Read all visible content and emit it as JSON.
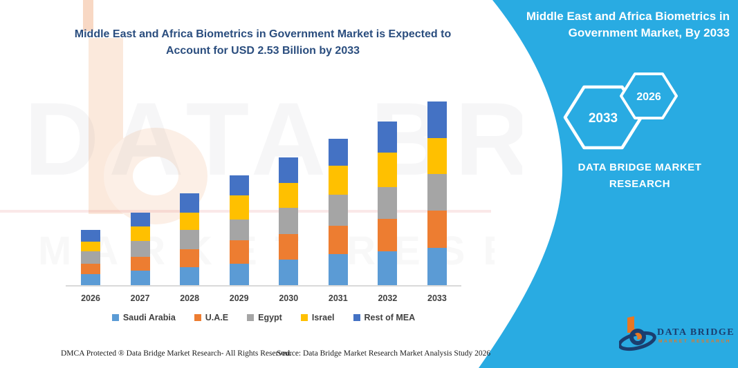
{
  "main_title": {
    "line1": "Middle East and Africa Biometrics in Government Market is Expected to",
    "line2": "Account for USD 2.53 Billion by 2033"
  },
  "panel": {
    "bg_color": "#29abe2",
    "title_line1": "Middle East and Africa Biometrics in",
    "title_line2": "Government Market, By 2033",
    "hex_back_label": "2033",
    "hex_front_label": "2026",
    "brand_line1": "DATA BRIDGE MARKET",
    "brand_line2": "RESEARCH"
  },
  "watermark": {
    "line1": "DATA BRIDGE",
    "line2": "MARKET RESEARCH"
  },
  "footer": {
    "left": "DMCA Protected ® Data Bridge Market Research-  All Rights Reserved.",
    "source": "Source: Data Bridge Market Research  Market Analysis Study 2026"
  },
  "logo": {
    "name": "DATA BRIDGE",
    "subtitle": "MARKET RESEARCH"
  },
  "chart_data": {
    "type": "bar",
    "variant": "stacked-column",
    "title": "Middle East and Africa Biometrics in Government Market is Expected to Account for USD 2.53 Billion by 2033",
    "unit": "USD Billion",
    "categories": [
      "2026",
      "2027",
      "2028",
      "2029",
      "2030",
      "2031",
      "2032",
      "2033"
    ],
    "series": [
      {
        "name": "Saudi Arabia",
        "color": "#5b9bd5",
        "values": [
          0.16,
          0.21,
          0.26,
          0.3,
          0.36,
          0.44,
          0.47,
          0.52
        ]
      },
      {
        "name": "U.A.E",
        "color": "#ed7d31",
        "values": [
          0.14,
          0.19,
          0.24,
          0.33,
          0.35,
          0.39,
          0.45,
          0.51
        ]
      },
      {
        "name": "Egypt",
        "color": "#a5a5a5",
        "values": [
          0.17,
          0.22,
          0.27,
          0.28,
          0.36,
          0.42,
          0.44,
          0.51
        ]
      },
      {
        "name": "Israel",
        "color": "#ffc000",
        "values": [
          0.14,
          0.2,
          0.24,
          0.33,
          0.34,
          0.4,
          0.47,
          0.49
        ]
      },
      {
        "name": "Rest of MEA",
        "color": "#4472c4",
        "values": [
          0.16,
          0.19,
          0.26,
          0.28,
          0.35,
          0.37,
          0.43,
          0.5
        ]
      }
    ],
    "totals": [
      0.77,
      1.01,
      1.27,
      1.52,
      1.76,
      2.02,
      2.26,
      2.53
    ],
    "ylim": [
      0,
      2.6
    ],
    "grid": false,
    "axis_labels_shown": false,
    "legend_position": "bottom"
  }
}
